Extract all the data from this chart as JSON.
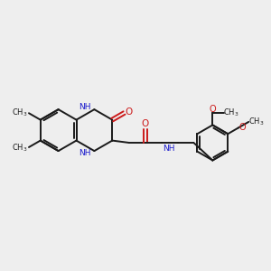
{
  "bg_color": "#eeeeee",
  "bond_color": "#1a1a1a",
  "N_color": "#1a1acc",
  "O_color": "#cc1a1a",
  "font_size": 7.0,
  "line_width": 1.4,
  "fig_size": [
    3.0,
    3.0
  ],
  "dpi": 100,
  "xlim": [
    0,
    10
  ],
  "ylim": [
    0,
    10
  ]
}
